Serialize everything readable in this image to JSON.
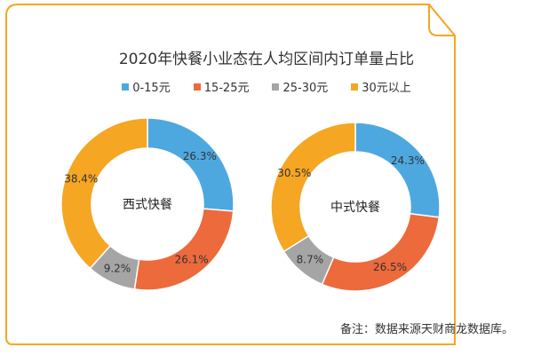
{
  "chart_data": {
    "type": "pie",
    "title": "2020年快餐小业态在人均区间内订单量占比",
    "legend": {
      "position": "top",
      "entries": [
        "0-15元",
        "15-25元",
        "25-30元",
        "30元以上"
      ]
    },
    "colors": [
      "#4EA8E0",
      "#EC6A3C",
      "#A5A5A5",
      "#F5A623"
    ],
    "charts": [
      {
        "center_label": "西式快餐",
        "values": [
          26.3,
          26.1,
          9.2,
          38.4
        ],
        "labels": [
          "26.3%",
          "26.1%",
          "9.2%",
          "38.4%"
        ]
      },
      {
        "center_label": "中式快餐",
        "values": [
          24.3,
          26.5,
          8.7,
          30.5
        ],
        "labels": [
          "24.3%",
          "26.5%",
          "8.7%",
          "30.5%"
        ]
      }
    ]
  },
  "note": "备注：数据来源天财商龙数据库。",
  "border_color": "#F5A623"
}
